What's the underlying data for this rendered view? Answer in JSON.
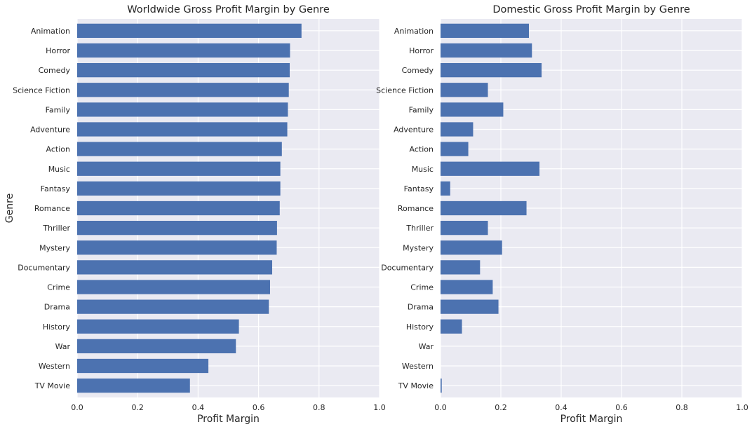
{
  "chart_data": [
    {
      "type": "bar",
      "orientation": "horizontal",
      "title": "Worldwide Gross Profit Margin by Genre",
      "xlabel": "Profit Margin",
      "ylabel": "Genre",
      "xlim": [
        0,
        1.0
      ],
      "xticks": [
        "0.0",
        "0.2",
        "0.4",
        "0.6",
        "0.8",
        "1.0"
      ],
      "grid": true,
      "bar_color": "#4c72b0",
      "background_color": "#eaeaf2",
      "categories": [
        "Animation",
        "Horror",
        "Comedy",
        "Science Fiction",
        "Family",
        "Adventure",
        "Action",
        "Music",
        "Fantasy",
        "Romance",
        "Thriller",
        "Mystery",
        "Documentary",
        "Crime",
        "Drama",
        "History",
        "War",
        "Western",
        "TV Movie"
      ],
      "values": [
        0.742,
        0.704,
        0.703,
        0.7,
        0.697,
        0.695,
        0.677,
        0.672,
        0.672,
        0.67,
        0.661,
        0.66,
        0.645,
        0.638,
        0.634,
        0.535,
        0.525,
        0.434,
        0.373
      ]
    },
    {
      "type": "bar",
      "orientation": "horizontal",
      "title": "Domestic Gross Profit Margin by Genre",
      "xlabel": "Profit Margin",
      "ylabel": "",
      "xlim": [
        0,
        1.0
      ],
      "xticks": [
        "0.0",
        "0.2",
        "0.4",
        "0.6",
        "0.8",
        "1.0"
      ],
      "grid": true,
      "bar_color": "#4c72b0",
      "background_color": "#eaeaf2",
      "categories": [
        "Animation",
        "Horror",
        "Comedy",
        "Science Fiction",
        "Family",
        "Adventure",
        "Action",
        "Music",
        "Fantasy",
        "Romance",
        "Thriller",
        "Mystery",
        "Documentary",
        "Crime",
        "Drama",
        "History",
        "War",
        "Western",
        "TV Movie"
      ],
      "values": [
        0.293,
        0.303,
        0.335,
        0.157,
        0.208,
        0.108,
        0.092,
        0.328,
        0.032,
        0.285,
        0.157,
        0.204,
        0.131,
        0.173,
        0.192,
        0.071,
        0.0,
        0.0,
        0.004
      ]
    }
  ]
}
